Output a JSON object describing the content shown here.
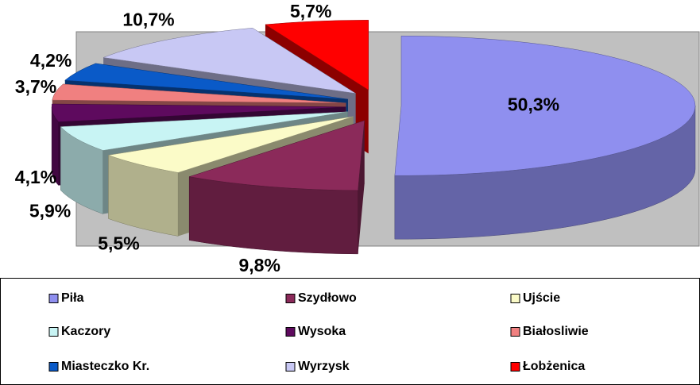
{
  "chart_data": {
    "type": "pie",
    "categories": [
      "Piła",
      "Szydłowo",
      "Ujście",
      "Kaczory",
      "Wysoka",
      "Białosliwie",
      "Miasteczko Kr.",
      "Wyrzysk",
      "Łobżenica"
    ],
    "values": [
      50.3,
      9.8,
      5.5,
      5.9,
      4.1,
      3.7,
      4.2,
      10.7,
      5.7
    ],
    "value_labels": [
      "50,3%",
      "9,8%",
      "5,5%",
      "5,9%",
      "4,1%",
      "3,7%",
      "4,2%",
      "10,7%",
      "5,7%"
    ],
    "colors": [
      "#8f8fef",
      "#8b2a5a",
      "#fbfbc8",
      "#c8f4f4",
      "#5e0a5e",
      "#f08080",
      "#0a5ac8",
      "#c8c8f4",
      "#ff0000"
    ],
    "legend": "bottom"
  }
}
